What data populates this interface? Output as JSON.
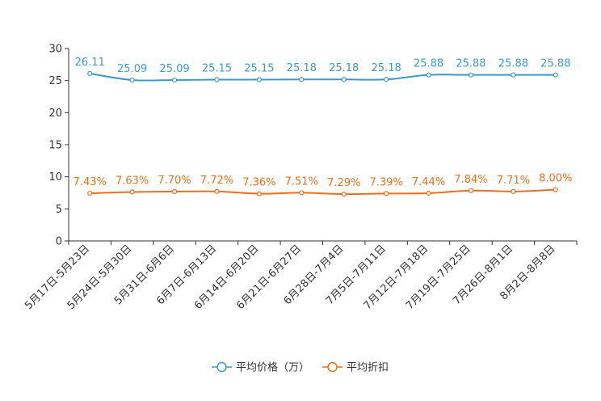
{
  "chart_data": {
    "type": "line",
    "categories": [
      "5月17日-5月23日",
      "5月24日-5月30日",
      "5月31日-6月6日",
      "6月7日-6月13日",
      "6月14日-6月20日",
      "6月21日-6月27日",
      "6月28日-7月4日",
      "7月5日-7月11日",
      "7月12日-7月18日",
      "7月19日-7月25日",
      "7月26日-8月1日",
      "8月2日-8月8日"
    ],
    "yticks": [
      "0",
      "5",
      "10",
      "15",
      "20",
      "25",
      "30"
    ],
    "ylim": [
      0,
      30
    ],
    "series": [
      {
        "name": "平均价格（万）",
        "color": "#3a9bc9",
        "values": [
          26.11,
          25.09,
          25.09,
          25.15,
          25.15,
          25.18,
          25.18,
          25.18,
          25.88,
          25.88,
          25.88,
          25.88
        ],
        "labels": [
          "26.11",
          "25.09",
          "25.09",
          "25.15",
          "25.15",
          "25.18",
          "25.18",
          "25.18",
          "25.88",
          "25.88",
          "25.88",
          "25.88"
        ]
      },
      {
        "name": "平均折扣",
        "color": "#ee6f1b",
        "values": [
          7.43,
          7.63,
          7.7,
          7.72,
          7.36,
          7.51,
          7.29,
          7.39,
          7.44,
          7.84,
          7.71,
          8.0
        ],
        "labels": [
          "7.43%",
          "7.63%",
          "7.70%",
          "7.72%",
          "7.36%",
          "7.51%",
          "7.29%",
          "7.39%",
          "7.44%",
          "7.84%",
          "7.71%",
          "8.00%"
        ]
      }
    ],
    "legend": [
      "平均价格（万）",
      "平均折扣"
    ],
    "legend_position": "bottom-center"
  }
}
